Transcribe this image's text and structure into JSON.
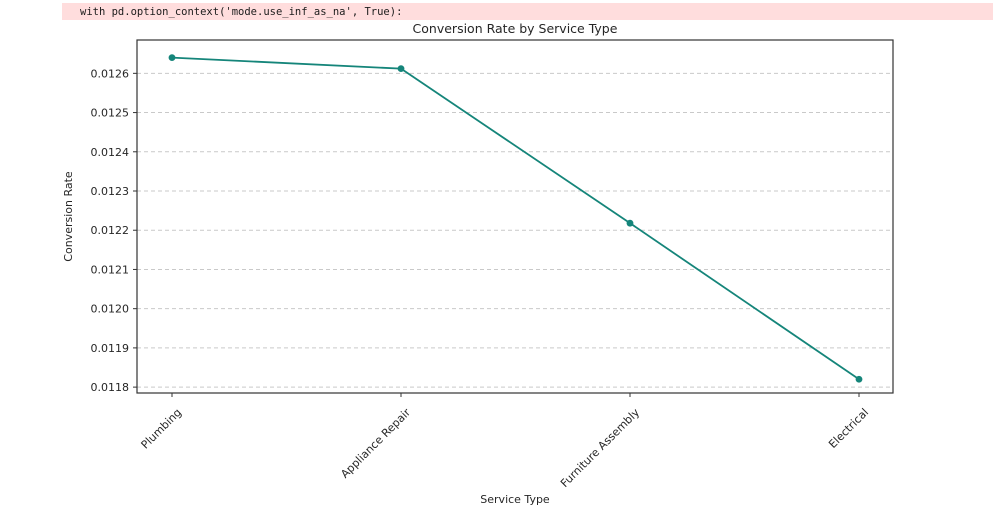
{
  "warning_bar": {
    "code_text": "with pd.option_context('mode.use_inf_as_na', True):",
    "background": "#ffdddd",
    "text_color": "#1c1c1c"
  },
  "chart_data": {
    "type": "line",
    "title": "Conversion Rate by Service Type",
    "xlabel": "Service Type",
    "ylabel": "Conversion Rate",
    "categories": [
      "Plumbing",
      "Appliance Repair",
      "Furniture Assembly",
      "Electrical"
    ],
    "values": [
      0.01264,
      0.012612,
      0.012218,
      0.01182
    ],
    "y_ticks": [
      0.0118,
      0.0119,
      0.012,
      0.0121,
      0.0122,
      0.0123,
      0.0124,
      0.0125,
      0.0126
    ],
    "y_tick_decimals": 4,
    "ylim": [
      0.011785,
      0.012685
    ],
    "x_tick_rotation": 45,
    "grid": "horizontal-dashed",
    "legend": "none",
    "line_color": "#15857a",
    "marker": "circle",
    "grid_color": "#c9c9c9",
    "spine_color": "#333333",
    "text_color": "#262626"
  }
}
